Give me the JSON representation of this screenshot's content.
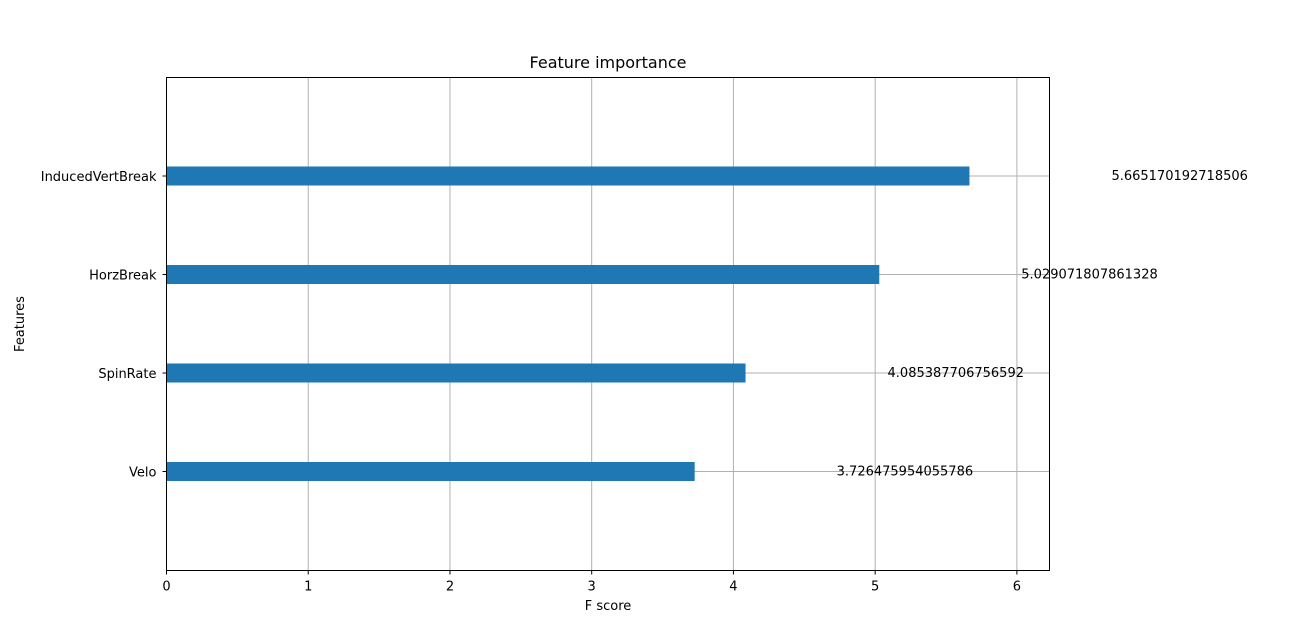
{
  "chart_data": {
    "type": "bar",
    "orientation": "horizontal",
    "title": "Feature importance",
    "xlabel": "F score",
    "ylabel": "Features",
    "categories": [
      "Velo",
      "SpinRate",
      "HorzBreak",
      "InducedVertBreak"
    ],
    "values": [
      3.726475954055786,
      4.085387706756592,
      5.029071807861328,
      5.665170192718506
    ],
    "value_labels": [
      "3.726475954055786",
      "4.085387706756592",
      "5.029071807861328",
      "5.665170192718506"
    ],
    "xlim": [
      0,
      6.23
    ],
    "xticks": [
      0,
      1,
      2,
      3,
      4,
      5,
      6
    ],
    "grid": true,
    "bar_color": "#1f77b4",
    "grid_color": "#b0b0b0"
  }
}
